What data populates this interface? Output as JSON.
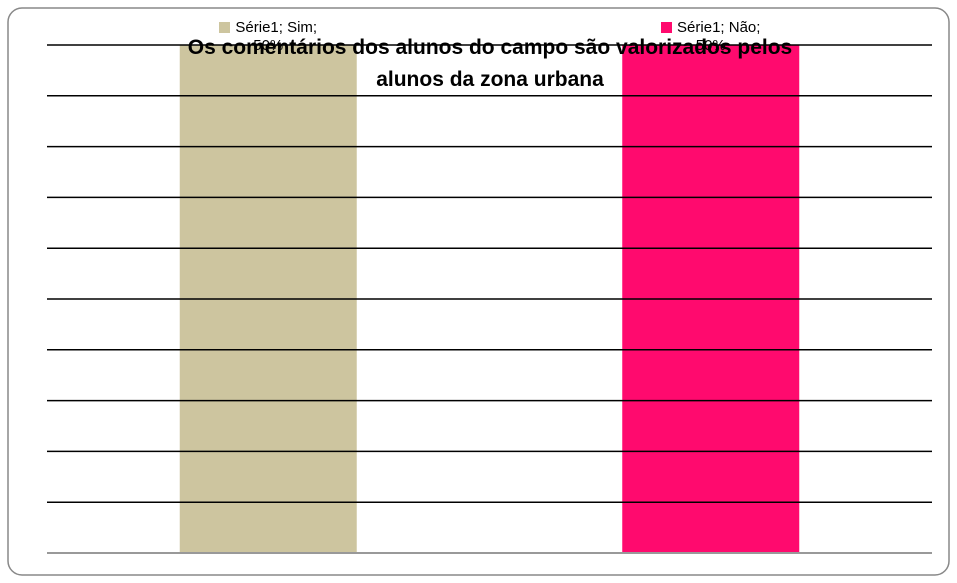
{
  "chart_data": {
    "type": "bar",
    "title": "Os comentários dos alunos do campo são valorizados pelos alunos da zona urbana",
    "values": [
      50,
      50
    ],
    "value_labels": [
      "Série1; Sim; 50%",
      "Série1; Não; 50%"
    ],
    "colors": [
      "#cdc59f",
      "#ff0a6e"
    ],
    "ylim": [
      0,
      50
    ],
    "yticks": [
      0,
      5,
      10,
      15,
      20,
      25,
      30,
      35,
      40,
      45,
      50
    ],
    "grid": true
  }
}
